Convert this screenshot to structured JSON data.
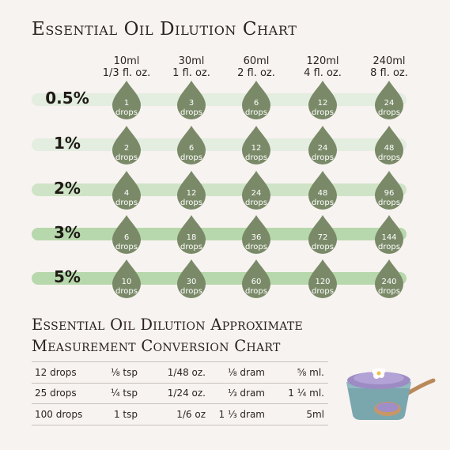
{
  "title": "Essential Oil Dilution Chart",
  "columns": [
    {
      "ml": "10ml",
      "oz": "1/3 fl. oz."
    },
    {
      "ml": "30ml",
      "oz": "1 fl. oz."
    },
    {
      "ml": "60ml",
      "oz": "2 fl. oz."
    },
    {
      "ml": "120ml",
      "oz": "4 fl. oz."
    },
    {
      "ml": "240ml",
      "oz": "8 fl. oz."
    }
  ],
  "rows": [
    {
      "pct": "0.5%",
      "drops": [
        "1",
        "3",
        "6",
        "12",
        "24"
      ]
    },
    {
      "pct": "1%",
      "drops": [
        "2",
        "6",
        "12",
        "24",
        "48"
      ]
    },
    {
      "pct": "2%",
      "drops": [
        "4",
        "12",
        "24",
        "48",
        "96"
      ]
    },
    {
      "pct": "3%",
      "drops": [
        "6",
        "18",
        "36",
        "72",
        "144"
      ]
    },
    {
      "pct": "5%",
      "drops": [
        "10",
        "30",
        "60",
        "120",
        "240"
      ]
    }
  ],
  "drop_unit": "drops",
  "subtitle_line1": "Essential Oil Dilution Approximate",
  "subtitle_line2": "Measurement Conversion Chart",
  "conversions": [
    [
      "12 drops",
      "⅛ tsp",
      "1/48 oz.",
      "⅛ dram",
      "⅝ ml."
    ],
    [
      "25 drops",
      "¼ tsp",
      "1/24 oz.",
      "⅓ dram",
      "1 ¼ ml."
    ],
    [
      "100 drops",
      "1 tsp",
      "1/6 oz",
      "1 ⅓ dram",
      "5ml"
    ]
  ],
  "colors": {
    "drop": "#7a8a68",
    "band_light": "#e3ede0",
    "band_dark": "#b7d8ac"
  }
}
